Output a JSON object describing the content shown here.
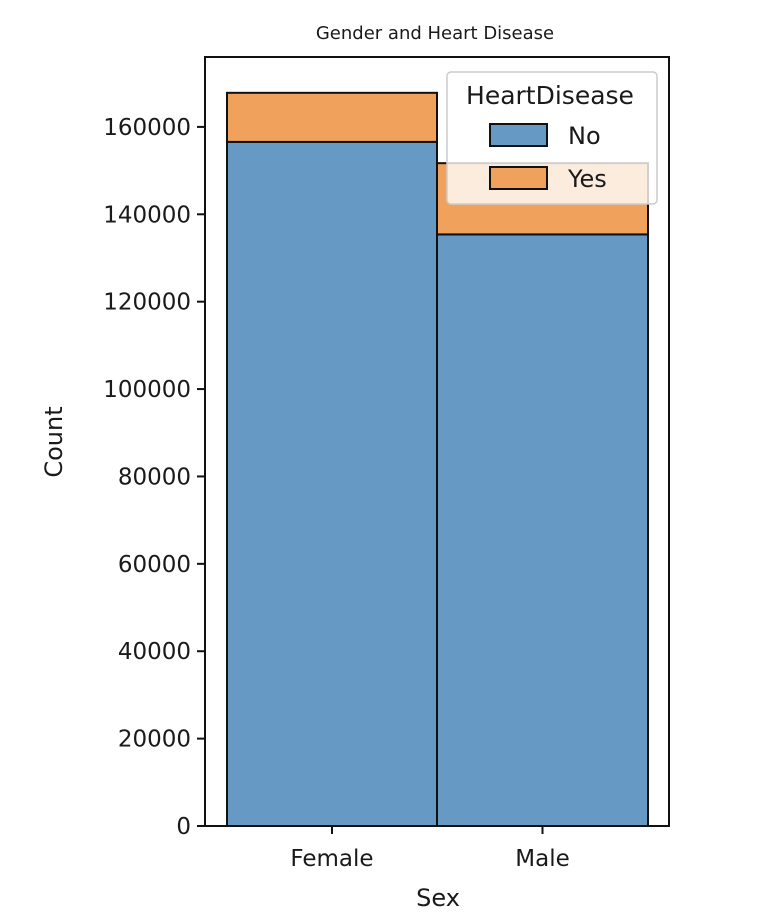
{
  "chart_data": {
    "type": "bar",
    "stacked": true,
    "title": "Gender and Heart Disease",
    "xlabel": "Sex",
    "ylabel": "Count",
    "categories": [
      "Female",
      "Male"
    ],
    "series": [
      {
        "name": "No",
        "values": [
          156570,
          135400
        ],
        "color": "#6699c3"
      },
      {
        "name": "Yes",
        "values": [
          11230,
          16300
        ],
        "color": "#f0a25c"
      }
    ],
    "ylim": [
      0,
      176000
    ],
    "yticks": [
      0,
      20000,
      40000,
      60000,
      80000,
      100000,
      120000,
      140000,
      160000
    ],
    "grid": false,
    "legend": {
      "title": "HeartDisease",
      "placement": "top-right"
    }
  }
}
